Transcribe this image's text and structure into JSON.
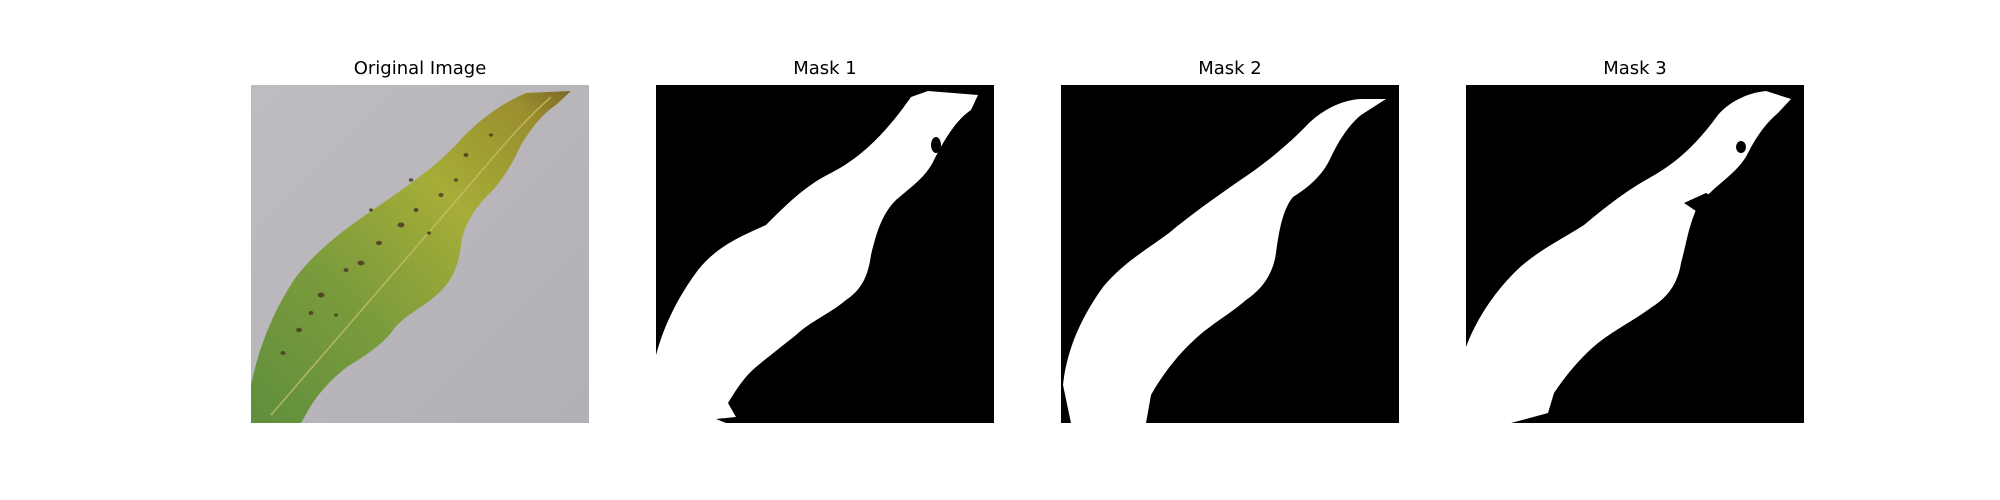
{
  "figure": {
    "panels": [
      {
        "title": "Original Image",
        "kind": "photo"
      },
      {
        "title": "Mask 1",
        "kind": "mask"
      },
      {
        "title": "Mask 2",
        "kind": "mask"
      },
      {
        "title": "Mask 3",
        "kind": "mask"
      }
    ]
  },
  "colors": {
    "background": "#ffffff",
    "mask_background": "#000000",
    "mask_foreground": "#ffffff",
    "photo_background": "#b8b6bb",
    "leaf_light": "#a6ad37",
    "leaf_dark": "#5f8e3d",
    "leaf_tip": "#8a7a2a",
    "spot": "#4f3a24"
  }
}
